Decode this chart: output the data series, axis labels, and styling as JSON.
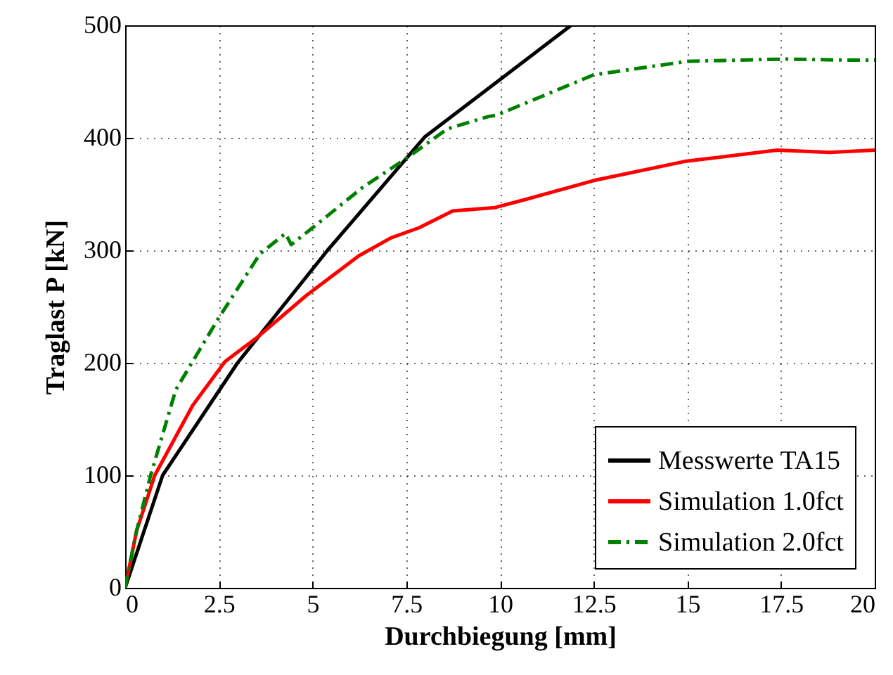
{
  "chart_data": {
    "type": "line",
    "xlabel": "Durchbiegung [mm]",
    "ylabel": "Traglast P [kN]",
    "xlim": [
      0,
      20
    ],
    "ylim": [
      0,
      500
    ],
    "xticks": [
      0,
      2.5,
      5,
      7.5,
      10,
      12.5,
      15,
      17.5,
      20
    ],
    "yticks": [
      0,
      100,
      200,
      300,
      400,
      500
    ],
    "grid": true,
    "legend": "bottom right",
    "series": [
      {
        "name": "Messwerte TA15",
        "color": "#000000",
        "line_style": "solid",
        "x": [
          0,
          1,
          3,
          5.4,
          8,
          11.9
        ],
        "values": [
          0,
          100,
          200,
          300,
          401,
          500
        ]
      },
      {
        "name": "Simulation 1.0fct",
        "color": "#ff0000",
        "line_style": "solid",
        "x": [
          0,
          0.3,
          0.79,
          1.8,
          2.66,
          3.5,
          4.84,
          6.23,
          7.09,
          7.84,
          8.74,
          9.87,
          10.66,
          12.5,
          14.93,
          17.4,
          18.8,
          20
        ],
        "values": [
          0,
          50,
          100,
          162,
          201,
          222,
          260,
          295,
          311,
          320,
          335,
          338,
          345,
          362,
          379,
          389,
          387,
          389
        ]
      },
      {
        "name": "Simulation 2.0fct",
        "color": "#008000",
        "line_style": "dashdot",
        "x": [
          0,
          0.3,
          0.68,
          1.35,
          2.48,
          3.6,
          4.28,
          4.43,
          5.0,
          6.34,
          7.47,
          8.6,
          9.7,
          9.9,
          12.5,
          15.0,
          17.6,
          19.4,
          20
        ],
        "values": [
          0,
          50,
          100,
          176,
          239,
          297,
          315,
          305,
          320,
          356,
          381,
          408,
          419,
          420,
          456,
          468,
          470,
          469,
          469
        ]
      }
    ]
  }
}
